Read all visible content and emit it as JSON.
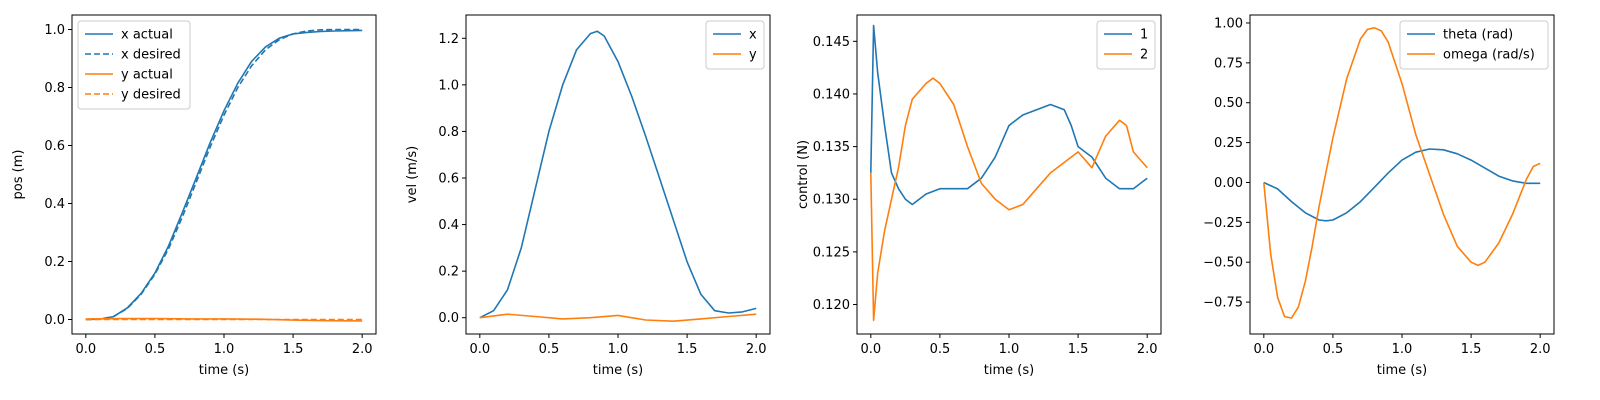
{
  "chart_data": [
    {
      "type": "line",
      "xlabel": "time (s)",
      "ylabel": "pos (m)",
      "xlim": [
        -0.1,
        2.1
      ],
      "ylim": [
        -0.05,
        1.05
      ],
      "xticks": [
        0.0,
        0.5,
        1.0,
        1.5,
        2.0
      ],
      "yticks": [
        0.0,
        0.2,
        0.4,
        0.6,
        0.8,
        1.0
      ],
      "xtick_labels": [
        "0.0",
        "0.5",
        "1.0",
        "1.5",
        "2.0"
      ],
      "ytick_labels": [
        "0.0",
        "0.2",
        "0.4",
        "0.6",
        "0.8",
        "1.0"
      ],
      "legend": "top-left",
      "grid": false,
      "series": [
        {
          "name": "x actual",
          "color": "#1f77b4",
          "dash": "solid",
          "x": [
            0.0,
            0.1,
            0.2,
            0.3,
            0.4,
            0.5,
            0.6,
            0.7,
            0.8,
            0.9,
            1.0,
            1.1,
            1.2,
            1.3,
            1.4,
            1.5,
            1.6,
            1.7,
            1.8,
            1.9,
            2.0
          ],
          "y": [
            0.0,
            0.001,
            0.01,
            0.04,
            0.09,
            0.16,
            0.255,
            0.37,
            0.49,
            0.61,
            0.72,
            0.815,
            0.89,
            0.94,
            0.97,
            0.985,
            0.99,
            0.993,
            0.995,
            0.996,
            0.997
          ]
        },
        {
          "name": "x desired",
          "color": "#1f77b4",
          "dash": "dashed",
          "x": [
            0.0,
            0.1,
            0.2,
            0.3,
            0.4,
            0.5,
            0.6,
            0.7,
            0.8,
            0.9,
            1.0,
            1.1,
            1.2,
            1.3,
            1.4,
            1.5,
            1.6,
            1.7,
            1.8,
            1.9,
            2.0
          ],
          "y": [
            0.0,
            0.001,
            0.01,
            0.038,
            0.087,
            0.156,
            0.245,
            0.355,
            0.475,
            0.595,
            0.705,
            0.8,
            0.875,
            0.93,
            0.965,
            0.985,
            0.995,
            0.999,
            1.0,
            1.0,
            1.0
          ]
        },
        {
          "name": "y actual",
          "color": "#ff7f0e",
          "dash": "solid",
          "x": [
            0.0,
            0.25,
            0.5,
            0.75,
            1.0,
            1.25,
            1.5,
            1.75,
            2.0
          ],
          "y": [
            0.002,
            0.003,
            0.003,
            0.002,
            0.002,
            0.001,
            -0.002,
            -0.004,
            -0.005
          ]
        },
        {
          "name": "y desired",
          "color": "#ff7f0e",
          "dash": "dashed",
          "x": [
            0.0,
            0.25,
            0.5,
            0.75,
            1.0,
            1.25,
            1.5,
            1.75,
            2.0
          ],
          "y": [
            0.0,
            0.0,
            0.0,
            0.0,
            0.0,
            0.0,
            0.0,
            0.0,
            0.0
          ]
        }
      ]
    },
    {
      "type": "line",
      "xlabel": "time (s)",
      "ylabel": "vel (m/s)",
      "xlim": [
        -0.1,
        2.1
      ],
      "ylim": [
        -0.07,
        1.3
      ],
      "xticks": [
        0.0,
        0.5,
        1.0,
        1.5,
        2.0
      ],
      "yticks": [
        0.0,
        0.2,
        0.4,
        0.6,
        0.8,
        1.0,
        1.2
      ],
      "xtick_labels": [
        "0.0",
        "0.5",
        "1.0",
        "1.5",
        "2.0"
      ],
      "ytick_labels": [
        "0.0",
        "0.2",
        "0.4",
        "0.6",
        "0.8",
        "1.0",
        "1.2"
      ],
      "legend": "top-right",
      "grid": false,
      "series": [
        {
          "name": "x",
          "color": "#1f77b4",
          "dash": "solid",
          "x": [
            0.0,
            0.1,
            0.2,
            0.3,
            0.4,
            0.5,
            0.6,
            0.7,
            0.8,
            0.85,
            0.9,
            1.0,
            1.1,
            1.2,
            1.3,
            1.4,
            1.5,
            1.6,
            1.7,
            1.8,
            1.9,
            2.0
          ],
          "y": [
            0.0,
            0.03,
            0.12,
            0.3,
            0.55,
            0.8,
            1.0,
            1.15,
            1.22,
            1.23,
            1.21,
            1.1,
            0.95,
            0.78,
            0.6,
            0.42,
            0.24,
            0.1,
            0.03,
            0.02,
            0.025,
            0.04
          ]
        },
        {
          "name": "y",
          "color": "#ff7f0e",
          "dash": "solid",
          "x": [
            0.0,
            0.2,
            0.4,
            0.6,
            0.8,
            1.0,
            1.2,
            1.4,
            1.6,
            1.8,
            2.0
          ],
          "y": [
            0.0,
            0.015,
            0.005,
            -0.005,
            0.0,
            0.01,
            -0.01,
            -0.015,
            -0.005,
            0.005,
            0.015
          ]
        }
      ]
    },
    {
      "type": "line",
      "xlabel": "time (s)",
      "ylabel": "control (N)",
      "xlim": [
        -0.1,
        2.1
      ],
      "ylim": [
        0.1172,
        0.1475
      ],
      "xticks": [
        0.0,
        0.5,
        1.0,
        1.5,
        2.0
      ],
      "yticks": [
        0.12,
        0.125,
        0.13,
        0.135,
        0.14,
        0.145
      ],
      "xtick_labels": [
        "0.0",
        "0.5",
        "1.0",
        "1.5",
        "2.0"
      ],
      "ytick_labels": [
        "0.120",
        "0.125",
        "0.130",
        "0.135",
        "0.140",
        "0.145"
      ],
      "legend": "top-right",
      "grid": false,
      "series": [
        {
          "name": "1",
          "color": "#1f77b4",
          "dash": "solid",
          "x": [
            0.0,
            0.02,
            0.05,
            0.1,
            0.15,
            0.2,
            0.25,
            0.3,
            0.35,
            0.4,
            0.5,
            0.6,
            0.7,
            0.8,
            0.85,
            0.9,
            1.0,
            1.1,
            1.2,
            1.3,
            1.4,
            1.45,
            1.5,
            1.6,
            1.7,
            1.8,
            1.9,
            2.0
          ],
          "y": [
            0.1325,
            0.1465,
            0.142,
            0.137,
            0.1325,
            0.131,
            0.13,
            0.1295,
            0.13,
            0.1305,
            0.131,
            0.131,
            0.131,
            0.132,
            0.133,
            0.134,
            0.137,
            0.138,
            0.1385,
            0.139,
            0.1385,
            0.137,
            0.135,
            0.134,
            0.132,
            0.131,
            0.131,
            0.132
          ]
        },
        {
          "name": "2",
          "color": "#ff7f0e",
          "dash": "solid",
          "x": [
            0.0,
            0.02,
            0.05,
            0.1,
            0.15,
            0.2,
            0.25,
            0.3,
            0.4,
            0.45,
            0.5,
            0.6,
            0.7,
            0.8,
            0.9,
            1.0,
            1.1,
            1.2,
            1.3,
            1.4,
            1.5,
            1.6,
            1.7,
            1.8,
            1.85,
            1.9,
            2.0
          ],
          "y": [
            0.1325,
            0.1185,
            0.123,
            0.127,
            0.13,
            0.133,
            0.137,
            0.1395,
            0.141,
            0.1415,
            0.141,
            0.139,
            0.135,
            0.1315,
            0.13,
            0.129,
            0.1295,
            0.131,
            0.1325,
            0.1335,
            0.1345,
            0.133,
            0.136,
            0.1375,
            0.137,
            0.1345,
            0.133
          ]
        }
      ]
    },
    {
      "type": "line",
      "xlabel": "time (s)",
      "ylabel": "",
      "xlim": [
        -0.1,
        2.1
      ],
      "ylim": [
        -0.95,
        1.05
      ],
      "xticks": [
        0.0,
        0.5,
        1.0,
        1.5,
        2.0
      ],
      "yticks": [
        -0.75,
        -0.5,
        -0.25,
        0.0,
        0.25,
        0.5,
        0.75,
        1.0
      ],
      "xtick_labels": [
        "0.0",
        "0.5",
        "1.0",
        "1.5",
        "2.0"
      ],
      "ytick_labels": [
        "−0.75",
        "−0.50",
        "−0.25",
        "0.00",
        "0.25",
        "0.50",
        "0.75",
        "1.00"
      ],
      "legend": "top-right",
      "grid": false,
      "series": [
        {
          "name": "theta (rad)",
          "color": "#1f77b4",
          "dash": "solid",
          "x": [
            0.0,
            0.1,
            0.2,
            0.3,
            0.4,
            0.45,
            0.5,
            0.6,
            0.7,
            0.8,
            0.9,
            1.0,
            1.1,
            1.2,
            1.3,
            1.4,
            1.5,
            1.6,
            1.7,
            1.8,
            1.9,
            2.0
          ],
          "y": [
            0.0,
            -0.04,
            -0.12,
            -0.19,
            -0.235,
            -0.24,
            -0.235,
            -0.19,
            -0.12,
            -0.03,
            0.06,
            0.14,
            0.19,
            0.21,
            0.205,
            0.18,
            0.14,
            0.09,
            0.04,
            0.01,
            -0.005,
            -0.005
          ]
        },
        {
          "name": "omega (rad/s)",
          "color": "#ff7f0e",
          "dash": "solid",
          "x": [
            0.0,
            0.05,
            0.1,
            0.15,
            0.2,
            0.25,
            0.3,
            0.35,
            0.4,
            0.5,
            0.6,
            0.7,
            0.75,
            0.8,
            0.85,
            0.9,
            1.0,
            1.1,
            1.2,
            1.3,
            1.4,
            1.5,
            1.55,
            1.6,
            1.7,
            1.8,
            1.9,
            1.95,
            2.0
          ],
          "y": [
            0.0,
            -0.45,
            -0.72,
            -0.84,
            -0.85,
            -0.78,
            -0.62,
            -0.4,
            -0.15,
            0.28,
            0.65,
            0.9,
            0.96,
            0.97,
            0.95,
            0.88,
            0.62,
            0.3,
            0.05,
            -0.2,
            -0.4,
            -0.5,
            -0.52,
            -0.5,
            -0.38,
            -0.2,
            0.02,
            0.1,
            0.12
          ]
        }
      ]
    }
  ]
}
